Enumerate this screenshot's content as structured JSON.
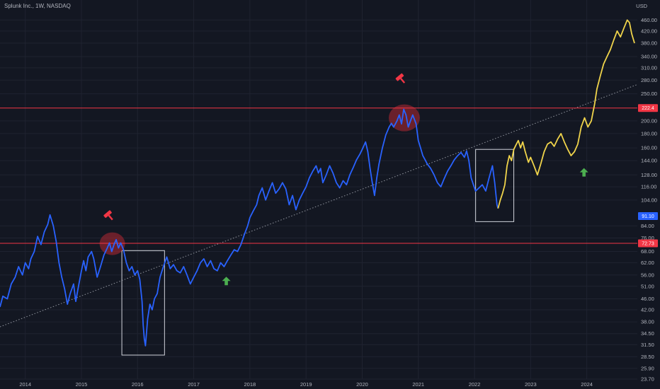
{
  "header": {
    "symbol_title": "Splunk Inc., 1W, NASDAQ",
    "currency": "USD"
  },
  "chart_data": {
    "type": "line",
    "yscale": "log",
    "ylim": [
      23.7,
      500
    ],
    "xlim": [
      2013.55,
      2024.9
    ],
    "y_ticks": [
      23.7,
      25.9,
      28.5,
      31.5,
      34.5,
      38.0,
      42.0,
      46.0,
      51.0,
      56.0,
      62.0,
      68.0,
      76.0,
      84.0,
      104.0,
      116.0,
      128.0,
      144.0,
      160.0,
      180.0,
      200.0,
      250.0,
      280.0,
      310.0,
      340.0,
      380.0,
      420.0,
      460.0
    ],
    "x_ticks": [
      {
        "label": "2014",
        "value": 2014.0
      },
      {
        "label": "2015",
        "value": 2015.0
      },
      {
        "label": "2016",
        "value": 2016.0
      },
      {
        "label": "2017",
        "value": 2017.0
      },
      {
        "label": "2018",
        "value": 2018.0
      },
      {
        "label": "2019",
        "value": 2019.0
      },
      {
        "label": "2020",
        "value": 2020.0
      },
      {
        "label": "2021",
        "value": 2021.0
      },
      {
        "label": "2022",
        "value": 2022.0
      },
      {
        "label": "2023",
        "value": 2023.0
      },
      {
        "label": "2024",
        "value": 2024.0
      }
    ],
    "series": [
      {
        "color": "#2962ff",
        "points": [
          [
            2013.55,
            43
          ],
          [
            2013.6,
            47
          ],
          [
            2013.68,
            46
          ],
          [
            2013.75,
            52
          ],
          [
            2013.82,
            55
          ],
          [
            2013.88,
            60
          ],
          [
            2013.95,
            56
          ],
          [
            2014.0,
            62
          ],
          [
            2014.06,
            59
          ],
          [
            2014.1,
            64
          ],
          [
            2014.16,
            68
          ],
          [
            2014.22,
            77
          ],
          [
            2014.28,
            72
          ],
          [
            2014.34,
            80
          ],
          [
            2014.4,
            85
          ],
          [
            2014.44,
            92
          ],
          [
            2014.5,
            84
          ],
          [
            2014.55,
            74
          ],
          [
            2014.6,
            62
          ],
          [
            2014.65,
            55
          ],
          [
            2014.7,
            50
          ],
          [
            2014.75,
            44
          ],
          [
            2014.8,
            48
          ],
          [
            2014.86,
            52
          ],
          [
            2014.9,
            45
          ],
          [
            2014.94,
            50
          ],
          [
            2015.0,
            58
          ],
          [
            2015.04,
            63
          ],
          [
            2015.08,
            58
          ],
          [
            2015.12,
            65
          ],
          [
            2015.18,
            68
          ],
          [
            2015.22,
            64
          ],
          [
            2015.28,
            55
          ],
          [
            2015.34,
            60
          ],
          [
            2015.4,
            66
          ],
          [
            2015.46,
            70
          ],
          [
            2015.5,
            73
          ],
          [
            2015.54,
            68
          ],
          [
            2015.58,
            72
          ],
          [
            2015.62,
            75
          ],
          [
            2015.66,
            70
          ],
          [
            2015.7,
            73
          ],
          [
            2015.75,
            69
          ],
          [
            2015.8,
            62
          ],
          [
            2015.85,
            58
          ],
          [
            2015.9,
            60
          ],
          [
            2015.95,
            56
          ],
          [
            2016.0,
            58
          ],
          [
            2016.04,
            54
          ],
          [
            2016.08,
            45
          ],
          [
            2016.1,
            37
          ],
          [
            2016.12,
            33
          ],
          [
            2016.14,
            31.2
          ],
          [
            2016.18,
            39
          ],
          [
            2016.22,
            44
          ],
          [
            2016.26,
            42
          ],
          [
            2016.3,
            46
          ],
          [
            2016.35,
            48
          ],
          [
            2016.4,
            55
          ],
          [
            2016.46,
            60
          ],
          [
            2016.52,
            65
          ],
          [
            2016.58,
            59
          ],
          [
            2016.64,
            61
          ],
          [
            2016.7,
            58
          ],
          [
            2016.76,
            57
          ],
          [
            2016.82,
            60
          ],
          [
            2016.88,
            56
          ],
          [
            2016.94,
            52
          ],
          [
            2017.0,
            55
          ],
          [
            2017.06,
            58
          ],
          [
            2017.12,
            62
          ],
          [
            2017.18,
            64
          ],
          [
            2017.24,
            60
          ],
          [
            2017.3,
            63
          ],
          [
            2017.36,
            59
          ],
          [
            2017.42,
            58
          ],
          [
            2017.48,
            62
          ],
          [
            2017.54,
            60
          ],
          [
            2017.6,
            63
          ],
          [
            2017.66,
            66
          ],
          [
            2017.72,
            69
          ],
          [
            2017.78,
            68
          ],
          [
            2017.84,
            72
          ],
          [
            2017.9,
            78
          ],
          [
            2017.96,
            84
          ],
          [
            2018.0,
            90
          ],
          [
            2018.06,
            95
          ],
          [
            2018.12,
            100
          ],
          [
            2018.16,
            108
          ],
          [
            2018.22,
            115
          ],
          [
            2018.28,
            104
          ],
          [
            2018.34,
            112
          ],
          [
            2018.4,
            120
          ],
          [
            2018.46,
            110
          ],
          [
            2018.52,
            114
          ],
          [
            2018.58,
            120
          ],
          [
            2018.64,
            114
          ],
          [
            2018.7,
            100
          ],
          [
            2018.76,
            108
          ],
          [
            2018.82,
            96
          ],
          [
            2018.88,
            104
          ],
          [
            2018.94,
            110
          ],
          [
            2019.0,
            116
          ],
          [
            2019.06,
            125
          ],
          [
            2019.12,
            132
          ],
          [
            2019.18,
            138
          ],
          [
            2019.22,
            130
          ],
          [
            2019.26,
            135
          ],
          [
            2019.3,
            120
          ],
          [
            2019.36,
            128
          ],
          [
            2019.42,
            138
          ],
          [
            2019.48,
            130
          ],
          [
            2019.54,
            120
          ],
          [
            2019.6,
            115
          ],
          [
            2019.66,
            122
          ],
          [
            2019.72,
            118
          ],
          [
            2019.78,
            128
          ],
          [
            2019.84,
            136
          ],
          [
            2019.9,
            145
          ],
          [
            2019.96,
            152
          ],
          [
            2020.0,
            158
          ],
          [
            2020.06,
            168
          ],
          [
            2020.1,
            155
          ],
          [
            2020.14,
            135
          ],
          [
            2020.18,
            120
          ],
          [
            2020.22,
            108
          ],
          [
            2020.26,
            125
          ],
          [
            2020.3,
            140
          ],
          [
            2020.36,
            160
          ],
          [
            2020.42,
            178
          ],
          [
            2020.48,
            190
          ],
          [
            2020.52,
            196
          ],
          [
            2020.56,
            190
          ],
          [
            2020.62,
            200
          ],
          [
            2020.66,
            210
          ],
          [
            2020.7,
            195
          ],
          [
            2020.74,
            220
          ],
          [
            2020.78,
            210
          ],
          [
            2020.82,
            190
          ],
          [
            2020.86,
            200
          ],
          [
            2020.9,
            210
          ],
          [
            2020.96,
            195
          ],
          [
            2021.0,
            170
          ],
          [
            2021.04,
            160
          ],
          [
            2021.08,
            150
          ],
          [
            2021.12,
            145
          ],
          [
            2021.16,
            140
          ],
          [
            2021.22,
            135
          ],
          [
            2021.28,
            128
          ],
          [
            2021.34,
            120
          ],
          [
            2021.4,
            116
          ],
          [
            2021.46,
            124
          ],
          [
            2021.52,
            132
          ],
          [
            2021.58,
            138
          ],
          [
            2021.64,
            145
          ],
          [
            2021.7,
            150
          ],
          [
            2021.76,
            154
          ],
          [
            2021.82,
            148
          ],
          [
            2021.86,
            156
          ],
          [
            2021.9,
            144
          ],
          [
            2021.94,
            125
          ],
          [
            2021.98,
            118
          ],
          [
            2022.02,
            112
          ],
          [
            2022.08,
            115
          ],
          [
            2022.14,
            118
          ],
          [
            2022.2,
            112
          ],
          [
            2022.26,
            125
          ],
          [
            2022.32,
            138
          ],
          [
            2022.36,
            120
          ],
          [
            2022.4,
            100
          ],
          [
            2022.42,
            97
          ]
        ]
      },
      {
        "color": "#f0d44b",
        "points": [
          [
            2022.42,
            97
          ],
          [
            2022.46,
            104
          ],
          [
            2022.5,
            110
          ],
          [
            2022.54,
            118
          ],
          [
            2022.58,
            138
          ],
          [
            2022.62,
            150
          ],
          [
            2022.66,
            144
          ],
          [
            2022.7,
            158
          ],
          [
            2022.74,
            164
          ],
          [
            2022.78,
            170
          ],
          [
            2022.82,
            160
          ],
          [
            2022.86,
            168
          ],
          [
            2022.9,
            156
          ],
          [
            2022.96,
            142
          ],
          [
            2023.0,
            148
          ],
          [
            2023.06,
            138
          ],
          [
            2023.12,
            128
          ],
          [
            2023.18,
            140
          ],
          [
            2023.24,
            155
          ],
          [
            2023.3,
            165
          ],
          [
            2023.36,
            168
          ],
          [
            2023.42,
            162
          ],
          [
            2023.48,
            172
          ],
          [
            2023.54,
            180
          ],
          [
            2023.6,
            168
          ],
          [
            2023.66,
            158
          ],
          [
            2023.72,
            150
          ],
          [
            2023.78,
            155
          ],
          [
            2023.84,
            165
          ],
          [
            2023.9,
            190
          ],
          [
            2023.96,
            205
          ],
          [
            2024.02,
            190
          ],
          [
            2024.08,
            200
          ],
          [
            2024.14,
            230
          ],
          [
            2024.18,
            260
          ],
          [
            2024.24,
            290
          ],
          [
            2024.3,
            320
          ],
          [
            2024.36,
            340
          ],
          [
            2024.42,
            360
          ],
          [
            2024.48,
            390
          ],
          [
            2024.54,
            420
          ],
          [
            2024.6,
            400
          ],
          [
            2024.66,
            430
          ],
          [
            2024.72,
            460
          ],
          [
            2024.76,
            450
          ],
          [
            2024.8,
            410
          ],
          [
            2024.85,
            380
          ]
        ]
      }
    ],
    "horizontal_lines": [
      {
        "value": 222.4,
        "label": "222.4",
        "color": "#f23645"
      },
      {
        "value": 72.73,
        "label": "72.73",
        "color": "#f23645"
      }
    ],
    "last_price_label": {
      "value": 91.1,
      "text": "91.10",
      "color": "#2962ff"
    },
    "trendline": {
      "from": [
        2013.55,
        36.5
      ],
      "to": [
        2024.9,
        270
      ],
      "color": "#b2b5be",
      "style": "dotted"
    },
    "rectangles": [
      {
        "x0": 2015.72,
        "x1": 2016.48,
        "y0": 28.9,
        "y1": 68.5,
        "color": "#d1d4dc"
      },
      {
        "x0": 2022.02,
        "x1": 2022.7,
        "y0": 87,
        "y1": 158,
        "color": "#d1d4dc"
      }
    ],
    "circles": [
      {
        "x": 2015.55,
        "y": 72.5,
        "rx": 18,
        "ry": 16,
        "color": "#b22833"
      },
      {
        "x": 2020.75,
        "y": 205,
        "rx": 22,
        "ry": 19,
        "color": "#b22833"
      }
    ],
    "markers": [
      {
        "type": "hammer",
        "x": 2015.48,
        "y": 92,
        "color": "#f23645"
      },
      {
        "type": "hammer",
        "x": 2020.68,
        "y": 285,
        "color": "#f23645"
      },
      {
        "type": "arrow-up",
        "x": 2017.58,
        "y": 53,
        "color": "#4caf50"
      },
      {
        "type": "arrow-up",
        "x": 2023.95,
        "y": 130,
        "color": "#4caf50"
      }
    ],
    "grid": true
  }
}
